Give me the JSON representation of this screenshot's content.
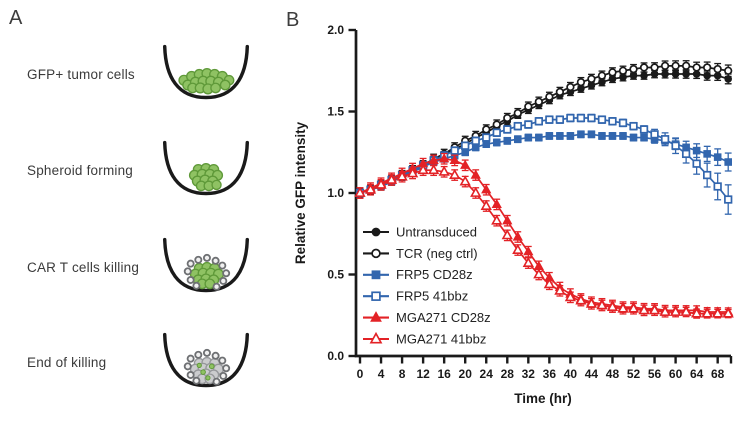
{
  "panel_a": {
    "label": "A",
    "steps": [
      {
        "label": "GFP+ tumor cells",
        "cells": [
          [
            27,
            37,
            5.1,
            "g"
          ],
          [
            35,
            33,
            5.1,
            "g"
          ],
          [
            43,
            31,
            5.1,
            "g"
          ],
          [
            51,
            30,
            5.1,
            "g"
          ],
          [
            59,
            31,
            5.1,
            "g"
          ],
          [
            67,
            33,
            5.1,
            "g"
          ],
          [
            74,
            37,
            4.9,
            "g"
          ],
          [
            31,
            42,
            5.1,
            "g"
          ],
          [
            39,
            39,
            5.1,
            "g"
          ],
          [
            47,
            38,
            5.1,
            "g"
          ],
          [
            55,
            38,
            5.1,
            "g"
          ],
          [
            63,
            39,
            5.1,
            "g"
          ],
          [
            70,
            42,
            4.9,
            "g"
          ],
          [
            36,
            45,
            4.9,
            "g"
          ],
          [
            44,
            45,
            5.1,
            "g"
          ],
          [
            52,
            46,
            5.1,
            "g"
          ],
          [
            60,
            45,
            4.9,
            "g"
          ]
        ]
      },
      {
        "label": "Spheroid forming",
        "cells": [
          [
            42,
            30,
            5.1,
            "g"
          ],
          [
            50,
            29,
            5.1,
            "g"
          ],
          [
            58,
            30,
            5.1,
            "g"
          ],
          [
            38,
            36,
            5.1,
            "g"
          ],
          [
            46,
            35,
            5.1,
            "g"
          ],
          [
            54,
            35,
            5.1,
            "g"
          ],
          [
            62,
            36,
            5.1,
            "g"
          ],
          [
            41,
            42,
            5.1,
            "g"
          ],
          [
            49,
            41,
            5.1,
            "g"
          ],
          [
            57,
            42,
            5.1,
            "g"
          ],
          [
            45,
            47,
            4.9,
            "g"
          ],
          [
            53,
            47,
            4.9,
            "g"
          ],
          [
            61,
            46,
            4.7,
            "g"
          ]
        ]
      },
      {
        "label": "CAR T cells killing",
        "cells": [
          [
            43,
            32,
            5.1,
            "g"
          ],
          [
            51,
            31,
            5.1,
            "g"
          ],
          [
            59,
            32,
            5.1,
            "g"
          ],
          [
            39,
            38,
            5.1,
            "g"
          ],
          [
            47,
            37,
            5.1,
            "g"
          ],
          [
            55,
            37,
            5.1,
            "g"
          ],
          [
            63,
            38,
            5.1,
            "g"
          ],
          [
            42,
            44,
            5.1,
            "g"
          ],
          [
            50,
            43,
            5.1,
            "g"
          ],
          [
            58,
            44,
            5.1,
            "g"
          ],
          [
            46,
            48,
            4.9,
            "g"
          ],
          [
            54,
            48,
            4.9,
            "g"
          ],
          [
            34,
            27,
            3.2,
            "t"
          ],
          [
            42,
            23,
            3.2,
            "t"
          ],
          [
            51,
            21,
            3.2,
            "t"
          ],
          [
            60,
            24,
            3.2,
            "t"
          ],
          [
            67,
            29,
            3.2,
            "t"
          ],
          [
            71,
            37,
            3.2,
            "t"
          ],
          [
            68,
            45,
            3.2,
            "t"
          ],
          [
            31,
            35,
            3.2,
            "t"
          ],
          [
            34,
            44,
            3.2,
            "t"
          ],
          [
            40,
            50,
            3.2,
            "t"
          ],
          [
            61,
            51,
            3.2,
            "t"
          ]
        ]
      },
      {
        "label": "End of killing",
        "cells": [
          [
            43,
            32,
            5.1,
            "d"
          ],
          [
            51,
            31,
            5.1,
            "d"
          ],
          [
            59,
            32,
            5.1,
            "d"
          ],
          [
            39,
            38,
            5.1,
            "d"
          ],
          [
            47,
            37,
            5.1,
            "d"
          ],
          [
            55,
            37,
            5.1,
            "d"
          ],
          [
            63,
            38,
            5.1,
            "d"
          ],
          [
            42,
            44,
            5.1,
            "d"
          ],
          [
            50,
            43,
            5.1,
            "d"
          ],
          [
            58,
            44,
            5.1,
            "d"
          ],
          [
            46,
            48,
            4.9,
            "d"
          ],
          [
            54,
            48,
            4.9,
            "d"
          ],
          [
            34,
            27,
            3.2,
            "t"
          ],
          [
            42,
            23,
            3.2,
            "t"
          ],
          [
            51,
            21,
            3.2,
            "t"
          ],
          [
            60,
            24,
            3.2,
            "t"
          ],
          [
            67,
            29,
            3.2,
            "t"
          ],
          [
            71,
            37,
            3.2,
            "t"
          ],
          [
            68,
            45,
            3.2,
            "t"
          ],
          [
            31,
            35,
            3.2,
            "t"
          ],
          [
            34,
            44,
            3.2,
            "t"
          ],
          [
            40,
            50,
            3.2,
            "t"
          ],
          [
            61,
            51,
            3.2,
            "t"
          ],
          [
            47,
            41,
            2.4,
            "s"
          ],
          [
            56,
            35,
            2.4,
            "s"
          ],
          [
            43,
            34,
            2.2,
            "s"
          ],
          [
            52,
            47,
            2.2,
            "s"
          ]
        ]
      }
    ]
  },
  "panel_b": {
    "label": "B"
  },
  "colors": {
    "axis": "#1a1a1a",
    "well_outline": "#1a1a1a",
    "green_fill": "#8fc263",
    "green_stroke": "#5f9939",
    "gray_fill": "#cbccce",
    "gray_stroke": "#96989b",
    "tcell_fill": "#f1f1f1",
    "tcell_stroke": "#6e7073"
  },
  "chart_data": {
    "type": "line",
    "title": "",
    "xlabel": "Time (hr)",
    "ylabel": "Relative GFP intensity",
    "xlim": [
      0,
      70
    ],
    "ylim": [
      0.0,
      2.0
    ],
    "xticks": [
      0,
      4,
      8,
      12,
      16,
      20,
      24,
      28,
      32,
      36,
      40,
      44,
      48,
      52,
      56,
      60,
      64,
      68
    ],
    "ytick_labels": [
      "0.0",
      "0.5",
      "1.0",
      "1.5",
      "2.0"
    ],
    "grid": false,
    "legend_position": "inside lower-left",
    "x": [
      0,
      2,
      4,
      6,
      8,
      10,
      12,
      14,
      16,
      18,
      20,
      22,
      24,
      26,
      28,
      30,
      32,
      34,
      36,
      38,
      40,
      42,
      44,
      46,
      48,
      50,
      52,
      54,
      56,
      58,
      60,
      62,
      64,
      66,
      68,
      70
    ],
    "series": [
      {
        "name": "Untransduced",
        "color": "#1a1a1a",
        "marker": "circle",
        "fill": "filled",
        "err": 0.022,
        "err_end": 0.03,
        "values": [
          1.0,
          1.02,
          1.04,
          1.07,
          1.1,
          1.13,
          1.16,
          1.2,
          1.23,
          1.27,
          1.3,
          1.34,
          1.37,
          1.41,
          1.44,
          1.48,
          1.51,
          1.54,
          1.57,
          1.6,
          1.62,
          1.64,
          1.66,
          1.68,
          1.7,
          1.71,
          1.72,
          1.72,
          1.73,
          1.73,
          1.73,
          1.73,
          1.73,
          1.72,
          1.72,
          1.7
        ]
      },
      {
        "name": "TCR (neg ctrl)",
        "color": "#1a1a1a",
        "marker": "circle",
        "fill": "open",
        "err": 0.028,
        "err_end": 0.035,
        "values": [
          1.0,
          1.02,
          1.05,
          1.08,
          1.11,
          1.14,
          1.17,
          1.21,
          1.24,
          1.28,
          1.32,
          1.35,
          1.39,
          1.42,
          1.46,
          1.49,
          1.53,
          1.56,
          1.59,
          1.62,
          1.65,
          1.68,
          1.7,
          1.72,
          1.74,
          1.75,
          1.76,
          1.77,
          1.77,
          1.78,
          1.78,
          1.78,
          1.77,
          1.77,
          1.76,
          1.75
        ]
      },
      {
        "name": "FRP5 CD28z",
        "color": "#3266ae",
        "marker": "square",
        "fill": "filled",
        "err": 0.02,
        "err_end": 0.055,
        "values": [
          1.0,
          1.02,
          1.04,
          1.07,
          1.1,
          1.13,
          1.16,
          1.19,
          1.21,
          1.23,
          1.25,
          1.28,
          1.3,
          1.31,
          1.32,
          1.33,
          1.34,
          1.34,
          1.35,
          1.35,
          1.35,
          1.36,
          1.36,
          1.35,
          1.35,
          1.35,
          1.34,
          1.34,
          1.33,
          1.32,
          1.3,
          1.28,
          1.26,
          1.24,
          1.22,
          1.19
        ]
      },
      {
        "name": "FRP5 41bbz",
        "color": "#3266ae",
        "marker": "square",
        "fill": "open",
        "err": 0.022,
        "err_end": 0.09,
        "values": [
          1.0,
          1.02,
          1.05,
          1.08,
          1.11,
          1.14,
          1.17,
          1.2,
          1.23,
          1.26,
          1.29,
          1.32,
          1.34,
          1.37,
          1.39,
          1.41,
          1.42,
          1.44,
          1.45,
          1.45,
          1.46,
          1.46,
          1.46,
          1.45,
          1.44,
          1.43,
          1.41,
          1.39,
          1.36,
          1.33,
          1.29,
          1.24,
          1.18,
          1.11,
          1.04,
          0.96
        ]
      },
      {
        "name": "MGA271 CD28z",
        "color": "#e32226",
        "marker": "triangle",
        "fill": "filled",
        "err": 0.032,
        "err_end": 0.025,
        "values": [
          1.0,
          1.03,
          1.06,
          1.09,
          1.12,
          1.15,
          1.18,
          1.2,
          1.21,
          1.2,
          1.17,
          1.11,
          1.02,
          0.93,
          0.83,
          0.73,
          0.64,
          0.55,
          0.48,
          0.42,
          0.38,
          0.35,
          0.33,
          0.32,
          0.31,
          0.3,
          0.3,
          0.29,
          0.29,
          0.28,
          0.28,
          0.28,
          0.28,
          0.27,
          0.27,
          0.27
        ]
      },
      {
        "name": "MGA271 41bbz",
        "color": "#e32226",
        "marker": "triangle",
        "fill": "open",
        "err": 0.032,
        "err_end": 0.025,
        "values": [
          1.0,
          1.02,
          1.05,
          1.08,
          1.1,
          1.12,
          1.14,
          1.14,
          1.13,
          1.11,
          1.07,
          1.0,
          0.92,
          0.83,
          0.74,
          0.65,
          0.57,
          0.5,
          0.44,
          0.4,
          0.36,
          0.34,
          0.32,
          0.31,
          0.3,
          0.29,
          0.29,
          0.28,
          0.28,
          0.27,
          0.27,
          0.27,
          0.26,
          0.26,
          0.26,
          0.26
        ]
      }
    ]
  }
}
